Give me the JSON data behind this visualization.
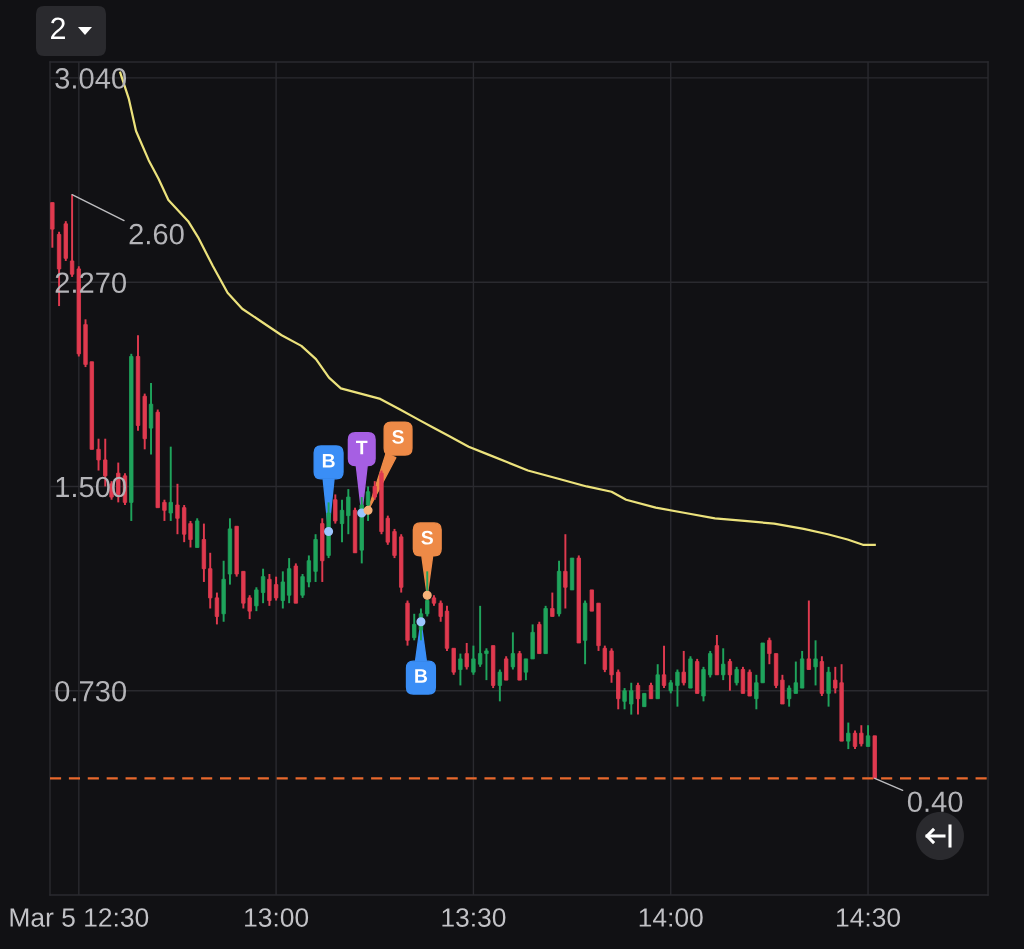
{
  "chart_data": {
    "type": "candlestick",
    "x": [
      12.433,
      12.45,
      12.467,
      12.483,
      12.5,
      12.517,
      12.533,
      12.55,
      12.567,
      12.583,
      12.6,
      12.617,
      12.633,
      12.65,
      12.667,
      12.683,
      12.7,
      12.717,
      12.733,
      12.75,
      12.767,
      12.783,
      12.8,
      12.817,
      12.833,
      12.85,
      12.867,
      12.883,
      12.9,
      12.917,
      12.933,
      12.95,
      12.967,
      12.983,
      13.0,
      13.017,
      13.033,
      13.05,
      13.067,
      13.083,
      13.1,
      13.117,
      13.133,
      13.15,
      13.167,
      13.183,
      13.2,
      13.217,
      13.233,
      13.25,
      13.267,
      13.283,
      13.3,
      13.317,
      13.333,
      13.35,
      13.367,
      13.383,
      13.4,
      13.417,
      13.433,
      13.45,
      13.467,
      13.483,
      13.5,
      13.517,
      13.533,
      13.55,
      13.567,
      13.583,
      13.6,
      13.617,
      13.633,
      13.65,
      13.667,
      13.683,
      13.7,
      13.717,
      13.733,
      13.75,
      13.767,
      13.783,
      13.8,
      13.817,
      13.833,
      13.85,
      13.867,
      13.883,
      13.9,
      13.917,
      13.933,
      13.95,
      13.967,
      13.983,
      14.0,
      14.017,
      14.033,
      14.05,
      14.067,
      14.083,
      14.1,
      14.117,
      14.133,
      14.15,
      14.167,
      14.183,
      14.2,
      14.217,
      14.233,
      14.25,
      14.267,
      14.283,
      14.3,
      14.317,
      14.333,
      14.35,
      14.367,
      14.383,
      14.4,
      14.417,
      14.433,
      14.45,
      14.467,
      14.483,
      14.5,
      14.517
    ],
    "ohlc": [
      [
        2.57,
        2.57,
        2.4,
        2.47
      ],
      [
        2.45,
        2.46,
        2.18,
        2.32
      ],
      [
        2.49,
        2.5,
        2.35,
        2.36
      ],
      [
        2.35,
        2.6,
        2.29,
        2.3
      ],
      [
        2.32,
        2.33,
        1.99,
        2.0
      ],
      [
        2.11,
        2.13,
        1.95,
        1.96
      ],
      [
        1.97,
        1.97,
        1.64,
        1.64
      ],
      [
        1.64,
        1.68,
        1.56,
        1.6
      ],
      [
        1.6,
        1.68,
        1.5,
        1.54
      ],
      [
        1.51,
        1.52,
        1.45,
        1.46
      ],
      [
        1.55,
        1.59,
        1.44,
        1.47
      ],
      [
        1.54,
        1.55,
        1.43,
        1.44
      ],
      [
        1.44,
        2.0,
        1.37,
        1.99
      ],
      [
        1.99,
        2.07,
        1.71,
        1.73
      ],
      [
        1.84,
        1.85,
        1.64,
        1.68
      ],
      [
        1.72,
        1.89,
        1.62,
        1.81
      ],
      [
        1.78,
        1.79,
        1.42,
        1.42
      ],
      [
        1.44,
        1.45,
        1.37,
        1.41
      ],
      [
        1.4,
        1.65,
        1.37,
        1.44
      ],
      [
        1.43,
        1.51,
        1.32,
        1.38
      ],
      [
        1.42,
        1.43,
        1.29,
        1.32
      ],
      [
        1.36,
        1.37,
        1.27,
        1.3
      ],
      [
        1.27,
        1.38,
        1.27,
        1.37
      ],
      [
        1.3,
        1.36,
        1.14,
        1.19
      ],
      [
        1.19,
        1.25,
        1.04,
        1.08
      ],
      [
        1.08,
        1.1,
        0.98,
        1.01
      ],
      [
        1.02,
        1.22,
        0.99,
        1.15
      ],
      [
        1.17,
        1.38,
        1.13,
        1.34
      ],
      [
        1.35,
        1.35,
        1.16,
        1.17
      ],
      [
        1.18,
        1.18,
        1.04,
        1.06
      ],
      [
        1.08,
        1.09,
        1.0,
        1.03
      ],
      [
        1.05,
        1.12,
        1.03,
        1.11
      ],
      [
        1.1,
        1.19,
        1.06,
        1.16
      ],
      [
        1.15,
        1.17,
        1.05,
        1.07
      ],
      [
        1.13,
        1.16,
        1.07,
        1.08
      ],
      [
        1.07,
        1.18,
        1.04,
        1.14
      ],
      [
        1.09,
        1.23,
        1.06,
        1.19
      ],
      [
        1.2,
        1.21,
        1.06,
        1.06
      ],
      [
        1.09,
        1.17,
        1.08,
        1.16
      ],
      [
        1.14,
        1.24,
        1.12,
        1.22
      ],
      [
        1.18,
        1.32,
        1.14,
        1.3
      ],
      [
        1.36,
        1.38,
        1.14,
        1.22
      ],
      [
        1.24,
        1.44,
        1.23,
        1.4
      ],
      [
        1.45,
        1.47,
        1.36,
        1.37
      ],
      [
        1.36,
        1.45,
        1.29,
        1.41
      ],
      [
        1.39,
        1.49,
        1.32,
        1.46
      ],
      [
        1.41,
        1.42,
        1.25,
        1.25
      ],
      [
        1.26,
        1.46,
        1.21,
        1.43
      ],
      [
        1.43,
        1.5,
        1.37,
        1.48
      ],
      [
        1.5,
        1.52,
        1.45,
        1.46
      ],
      [
        1.55,
        1.56,
        1.32,
        1.33
      ],
      [
        1.38,
        1.39,
        1.28,
        1.29
      ],
      [
        1.33,
        1.34,
        1.23,
        1.24
      ],
      [
        1.31,
        1.32,
        1.1,
        1.12
      ],
      [
        1.06,
        1.07,
        0.9,
        0.92
      ],
      [
        0.93,
        1.02,
        0.92,
        0.98
      ],
      [
        0.96,
        1.04,
        0.92,
        1.02
      ],
      [
        1.02,
        1.18,
        1.01,
        1.07
      ],
      [
        1.08,
        1.09,
        1.05,
        1.06
      ],
      [
        1.06,
        1.07,
        0.99,
        1.01
      ],
      [
        1.03,
        1.05,
        0.88,
        0.89
      ],
      [
        0.89,
        0.89,
        0.79,
        0.8
      ],
      [
        0.81,
        0.87,
        0.75,
        0.85
      ],
      [
        0.87,
        0.91,
        0.81,
        0.82
      ],
      [
        0.8,
        0.9,
        0.79,
        0.85
      ],
      [
        0.83,
        1.05,
        0.82,
        0.87
      ],
      [
        0.87,
        0.89,
        0.77,
        0.88
      ],
      [
        0.9,
        0.9,
        0.74,
        0.75
      ],
      [
        0.75,
        0.81,
        0.69,
        0.8
      ],
      [
        0.85,
        0.86,
        0.77,
        0.77
      ],
      [
        0.82,
        0.95,
        0.81,
        0.87
      ],
      [
        0.87,
        0.88,
        0.77,
        0.77
      ],
      [
        0.8,
        0.85,
        0.77,
        0.85
      ],
      [
        0.85,
        0.98,
        0.85,
        0.95
      ],
      [
        0.98,
        0.99,
        0.87,
        0.87
      ],
      [
        0.87,
        1.05,
        0.87,
        1.04
      ],
      [
        1.04,
        1.1,
        1.01,
        1.01
      ],
      [
        1.02,
        1.22,
        1.01,
        1.18
      ],
      [
        1.18,
        1.32,
        1.04,
        1.12
      ],
      [
        1.11,
        1.23,
        1.11,
        1.23
      ],
      [
        1.23,
        1.24,
        0.91,
        0.91
      ],
      [
        0.92,
        1.07,
        0.83,
        1.06
      ],
      [
        1.11,
        1.11,
        1.03,
        1.03
      ],
      [
        1.06,
        1.06,
        0.88,
        0.9
      ],
      [
        0.89,
        0.9,
        0.8,
        0.81
      ],
      [
        0.88,
        0.89,
        0.76,
        0.79
      ],
      [
        0.8,
        0.81,
        0.66,
        0.7
      ],
      [
        0.69,
        0.74,
        0.66,
        0.73
      ],
      [
        0.68,
        0.76,
        0.64,
        0.73
      ],
      [
        0.75,
        0.76,
        0.64,
        0.7
      ],
      [
        0.67,
        0.72,
        0.67,
        0.72
      ],
      [
        0.75,
        0.76,
        0.7,
        0.7
      ],
      [
        0.7,
        0.83,
        0.7,
        0.79
      ],
      [
        0.79,
        0.9,
        0.74,
        0.75
      ],
      [
        0.73,
        0.77,
        0.72,
        0.76
      ],
      [
        0.75,
        0.81,
        0.67,
        0.8
      ],
      [
        0.8,
        0.88,
        0.75,
        0.76
      ],
      [
        0.74,
        0.86,
        0.74,
        0.85
      ],
      [
        0.84,
        0.85,
        0.72,
        0.72
      ],
      [
        0.71,
        0.82,
        0.69,
        0.81
      ],
      [
        0.79,
        0.88,
        0.78,
        0.87
      ],
      [
        0.9,
        0.94,
        0.79,
        0.79
      ],
      [
        0.79,
        0.89,
        0.77,
        0.83
      ],
      [
        0.84,
        0.85,
        0.73,
        0.79
      ],
      [
        0.76,
        0.82,
        0.75,
        0.81
      ],
      [
        0.81,
        0.82,
        0.72,
        0.72
      ],
      [
        0.8,
        0.81,
        0.71,
        0.71
      ],
      [
        0.7,
        0.79,
        0.66,
        0.76
      ],
      [
        0.76,
        0.91,
        0.76,
        0.91
      ],
      [
        0.92,
        0.93,
        0.83,
        0.87
      ],
      [
        0.87,
        0.87,
        0.74,
        0.75
      ],
      [
        0.77,
        0.79,
        0.68,
        0.68
      ],
      [
        0.7,
        0.75,
        0.67,
        0.74
      ],
      [
        0.72,
        0.84,
        0.72,
        0.76
      ],
      [
        0.74,
        0.88,
        0.74,
        0.85
      ],
      [
        0.85,
        1.07,
        0.81,
        0.81
      ],
      [
        0.82,
        0.92,
        0.75,
        0.85
      ],
      [
        0.84,
        0.86,
        0.71,
        0.72
      ],
      [
        0.72,
        0.82,
        0.67,
        0.8
      ],
      [
        0.77,
        0.82,
        0.72,
        0.74
      ],
      [
        0.76,
        0.83,
        0.54,
        0.54
      ],
      [
        0.54,
        0.61,
        0.51,
        0.57
      ],
      [
        0.57,
        0.58,
        0.51,
        0.52
      ],
      [
        0.57,
        0.6,
        0.52,
        0.53
      ],
      [
        0.52,
        0.6,
        0.52,
        0.56
      ],
      [
        0.56,
        0.56,
        0.4,
        0.4
      ]
    ],
    "colors": [
      "#e03a4f",
      "#e03a4f",
      "#e03a4f",
      "#e03a4f",
      "#e03a4f",
      "#e03a4f",
      "#e03a4f",
      "#e03a4f",
      "#e03a4f",
      "#e03a4f",
      "#e03a4f",
      "#e03a4f",
      "#1fa45c",
      "#e03a4f",
      "#e03a4f",
      "#1fa45c",
      "#e03a4f",
      "#e03a4f",
      "#1fa45c",
      "#e03a4f",
      "#e03a4f",
      "#e03a4f",
      "#1fa45c",
      "#e03a4f",
      "#e03a4f",
      "#e03a4f",
      "#1fa45c",
      "#1fa45c",
      "#e03a4f",
      "#e03a4f",
      "#e03a4f",
      "#1fa45c",
      "#1fa45c",
      "#e03a4f",
      "#e03a4f",
      "#1fa45c",
      "#1fa45c",
      "#e03a4f",
      "#1fa45c",
      "#1fa45c",
      "#1fa45c",
      "#e03a4f",
      "#1fa45c",
      "#e03a4f",
      "#1fa45c",
      "#1fa45c",
      "#e03a4f",
      "#1fa45c",
      "#1fa45c",
      "#e03a4f",
      "#e03a4f",
      "#e03a4f",
      "#e03a4f",
      "#e03a4f",
      "#e03a4f",
      "#1fa45c",
      "#1fa45c",
      "#1fa45c",
      "#e03a4f",
      "#e03a4f",
      "#e03a4f",
      "#e03a4f",
      "#1fa45c",
      "#e03a4f",
      "#1fa45c",
      "#1fa45c",
      "#1fa45c",
      "#e03a4f",
      "#1fa45c",
      "#e03a4f",
      "#1fa45c",
      "#e03a4f",
      "#1fa45c",
      "#1fa45c",
      "#e03a4f",
      "#1fa45c",
      "#e03a4f",
      "#1fa45c",
      "#e03a4f",
      "#1fa45c",
      "#e03a4f",
      "#1fa45c",
      "#e03a4f",
      "#e03a4f",
      "#e03a4f",
      "#e03a4f",
      "#e03a4f",
      "#1fa45c",
      "#1fa45c",
      "#e03a4f",
      "#1fa45c",
      "#e03a4f",
      "#1fa45c",
      "#e03a4f",
      "#1fa45c",
      "#1fa45c",
      "#e03a4f",
      "#1fa45c",
      "#e03a4f",
      "#1fa45c",
      "#1fa45c",
      "#e03a4f",
      "#1fa45c",
      "#e03a4f",
      "#1fa45c",
      "#e03a4f",
      "#e03a4f",
      "#1fa45c",
      "#1fa45c",
      "#e03a4f",
      "#e03a4f",
      "#e03a4f",
      "#1fa45c",
      "#1fa45c",
      "#1fa45c",
      "#e03a4f",
      "#1fa45c",
      "#e03a4f",
      "#1fa45c",
      "#e03a4f",
      "#e03a4f",
      "#1fa45c",
      "#e03a4f",
      "#e03a4f",
      "#1fa45c",
      "#e03a4f"
    ],
    "series": [
      {
        "type": "line",
        "color": "#ece27c",
        "x": [
          12.605,
          12.627,
          12.645,
          12.677,
          12.702,
          12.727,
          12.777,
          12.802,
          12.84,
          12.877,
          12.914,
          12.964,
          13.014,
          13.064,
          13.101,
          13.134,
          13.164,
          13.214,
          13.264,
          13.314,
          13.363,
          13.4,
          13.438,
          13.488,
          13.538,
          13.588,
          13.638,
          13.713,
          13.787,
          13.85,
          13.887,
          13.962,
          14.037,
          14.112,
          14.187,
          14.262,
          14.337,
          14.398,
          14.448,
          14.487,
          14.517
        ],
        "values": [
          3.06,
          2.96,
          2.84,
          2.73,
          2.66,
          2.58,
          2.5,
          2.44,
          2.33,
          2.23,
          2.17,
          2.12,
          2.07,
          2.03,
          1.98,
          1.91,
          1.87,
          1.85,
          1.83,
          1.79,
          1.75,
          1.72,
          1.69,
          1.65,
          1.62,
          1.59,
          1.56,
          1.53,
          1.5,
          1.48,
          1.45,
          1.42,
          1.4,
          1.38,
          1.37,
          1.36,
          1.34,
          1.32,
          1.3,
          1.28,
          1.28
        ]
      }
    ],
    "xlim": [
      12.427,
      14.804
    ],
    "ylim": [
      -0.04,
      3.1
    ],
    "xticks": [
      {
        "value": 12.5,
        "label": "Mar 5 12:30"
      },
      {
        "value": 13,
        "label": "13:00"
      },
      {
        "value": 13.5,
        "label": "13:30"
      },
      {
        "value": 14,
        "label": "14:00"
      },
      {
        "value": 14.5,
        "label": "14:30"
      }
    ],
    "yticks": [
      {
        "value": 0.73,
        "label": "0.730"
      },
      {
        "value": 1.5,
        "label": "1.500"
      },
      {
        "value": 2.27,
        "label": "2.270"
      },
      {
        "value": 3.04,
        "label": "3.040"
      }
    ],
    "grid": true,
    "ref_lines": [
      {
        "axis": "y",
        "value": 0.4,
        "color": "#e8682c",
        "line_style": "dashed"
      }
    ],
    "annotations": [
      "2",
      {
        "text": "2.60",
        "x": 12.483,
        "y": 2.6
      },
      {
        "text": "0.40",
        "x": 14.517,
        "y": 0.4
      },
      {
        "text": "B",
        "x": 13.133,
        "y": 1.33
      },
      {
        "text": "T",
        "x": 13.217,
        "y": 1.4
      },
      {
        "text": "S",
        "x": 13.233,
        "y": 1.41
      },
      {
        "text": "S",
        "x": 13.383,
        "y": 1.09
      },
      {
        "text": "B",
        "x": 13.367,
        "y": 0.99
      }
    ]
  }
}
